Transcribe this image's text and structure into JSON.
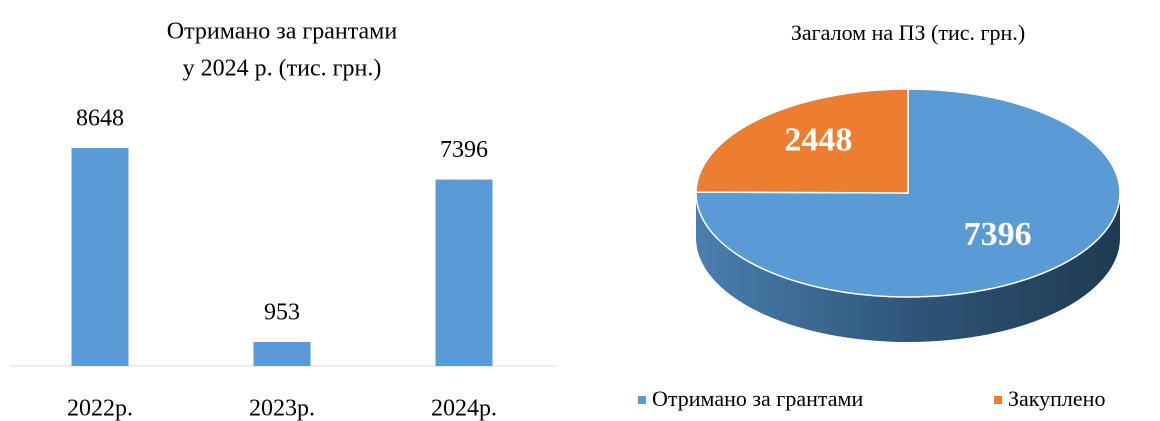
{
  "chart_data": [
    {
      "type": "bar",
      "title": [
        "Отримано за грантами",
        "у 2024 р. (тис. грн.)"
      ],
      "categories": [
        "2022р.",
        "2023р.",
        "2024р."
      ],
      "values": [
        8648,
        953,
        7396
      ],
      "color": "#5b9bd5"
    },
    {
      "type": "pie",
      "title": "Загалом на ПЗ (тис. грн.)",
      "categories": [
        "Отримано за грантами",
        "Закуплено"
      ],
      "values": [
        7396,
        2448
      ],
      "colors": [
        "#5b9bd5",
        "#ed7d31"
      ]
    }
  ]
}
